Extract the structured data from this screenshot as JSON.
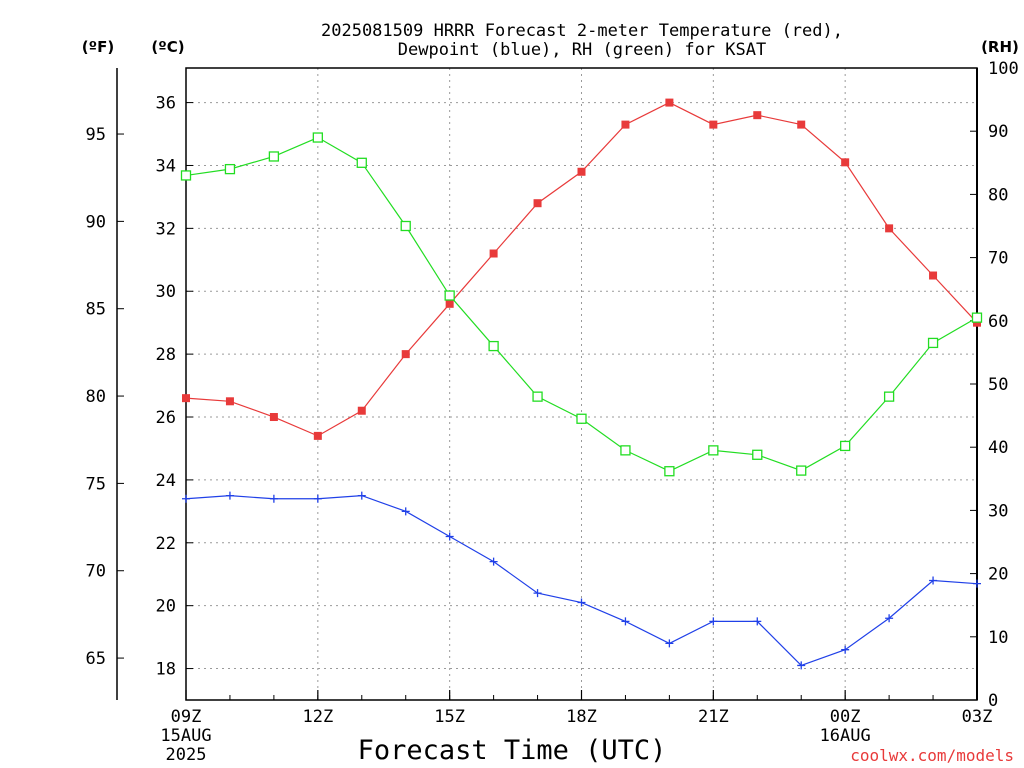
{
  "chart_data": {
    "type": "line",
    "title_line1": "2025081509 HRRR Forecast 2-meter Temperature (red),",
    "title_line2": "Dewpoint (blue), RH (green) for KSAT",
    "xlabel": "Forecast Time (UTC)",
    "credit": "coolwx.com/models",
    "unit_f": "(ºF)",
    "unit_c": "(ºC)",
    "unit_rh": "(RH)",
    "x": [
      "09Z",
      "10Z",
      "11Z",
      "12Z",
      "13Z",
      "14Z",
      "15Z",
      "16Z",
      "17Z",
      "18Z",
      "19Z",
      "20Z",
      "21Z",
      "22Z",
      "23Z",
      "00Z",
      "01Z",
      "02Z",
      "03Z"
    ],
    "x_ticks": [
      {
        "index": 0,
        "label": "09Z",
        "sub1": "15AUG",
        "sub2": "2025"
      },
      {
        "index": 3,
        "label": "12Z",
        "sub1": "",
        "sub2": ""
      },
      {
        "index": 6,
        "label": "15Z",
        "sub1": "",
        "sub2": ""
      },
      {
        "index": 9,
        "label": "18Z",
        "sub1": "",
        "sub2": ""
      },
      {
        "index": 12,
        "label": "21Z",
        "sub1": "",
        "sub2": ""
      },
      {
        "index": 15,
        "label": "00Z",
        "sub1": "16AUG",
        "sub2": ""
      },
      {
        "index": 18,
        "label": "03Z",
        "sub1": "",
        "sub2": ""
      }
    ],
    "y_celsius": {
      "range": [
        17,
        37.1
      ],
      "ticks": [
        18,
        20,
        22,
        24,
        26,
        28,
        30,
        32,
        34,
        36
      ]
    },
    "y_fahrenheit": {
      "ticks": [
        65,
        70,
        75,
        80,
        85,
        90,
        95
      ]
    },
    "y_rh": {
      "range": [
        0,
        100
      ],
      "ticks": [
        0,
        10,
        20,
        30,
        40,
        50,
        60,
        70,
        80,
        90,
        100
      ]
    },
    "grid": true,
    "series": [
      {
        "key": "temp",
        "axis": "celsius",
        "color": "#e83a3a",
        "marker": "filled-square",
        "values": [
          26.6,
          26.5,
          26.0,
          25.4,
          26.2,
          28.0,
          29.6,
          31.2,
          32.8,
          33.8,
          35.3,
          36.0,
          35.3,
          35.6,
          35.3,
          34.1,
          32.0,
          30.5,
          29.0
        ]
      },
      {
        "key": "dewpoint",
        "axis": "celsius",
        "color": "#2040e8",
        "marker": "plus",
        "values": [
          23.4,
          23.5,
          23.4,
          23.4,
          23.5,
          23.0,
          22.2,
          21.4,
          20.4,
          20.1,
          19.5,
          18.8,
          19.5,
          19.5,
          18.1,
          18.6,
          19.6,
          20.8,
          20.7
        ]
      },
      {
        "key": "rh",
        "axis": "rh",
        "color": "#22dd22",
        "marker": "open-square",
        "values": [
          83,
          84,
          86,
          89,
          85,
          75,
          64,
          56,
          48,
          44.5,
          39.5,
          36.2,
          39.5,
          38.8,
          36.3,
          40.2,
          48,
          56.5,
          60.5
        ]
      }
    ]
  }
}
